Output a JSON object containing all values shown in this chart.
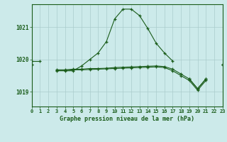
{
  "title": "Graphe pression niveau de la mer (hPa)",
  "background_color": "#cceaea",
  "grid_color": "#aacccc",
  "line_color": "#1a5c1a",
  "x_labels": [
    "0",
    "1",
    "2",
    "3",
    "4",
    "5",
    "6",
    "7",
    "8",
    "9",
    "10",
    "11",
    "12",
    "13",
    "14",
    "15",
    "16",
    "17",
    "18",
    "19",
    "20",
    "21",
    "22",
    "23"
  ],
  "ylim": [
    1018.55,
    1021.7
  ],
  "yticks": [
    1019,
    1020,
    1021
  ],
  "xlim": [
    0,
    23
  ],
  "main_line": [
    1019.95,
    1019.95,
    null,
    1019.65,
    1019.65,
    1019.65,
    1019.8,
    1020.0,
    1020.2,
    1020.55,
    1021.25,
    1021.55,
    1021.55,
    1021.35,
    1020.95,
    1020.5,
    1020.2,
    1019.95,
    null,
    1019.4,
    1019.1,
    1019.4,
    null,
    1019.85
  ],
  "flat_line1": [
    1019.85,
    null,
    null,
    1019.68,
    1019.68,
    1019.7,
    1019.7,
    1019.72,
    1019.72,
    1019.73,
    1019.75,
    1019.76,
    1019.77,
    1019.78,
    1019.79,
    1019.8,
    1019.78,
    1019.7,
    1019.55,
    1019.4,
    1019.1,
    1019.4,
    null,
    1019.85
  ],
  "flat_line2": [
    1019.85,
    null,
    null,
    1019.66,
    1019.66,
    1019.68,
    1019.68,
    1019.69,
    1019.7,
    1019.71,
    1019.72,
    1019.73,
    1019.74,
    1019.75,
    1019.76,
    1019.77,
    1019.75,
    1019.65,
    1019.5,
    1019.35,
    1019.05,
    1019.35,
    null,
    1019.85
  ]
}
